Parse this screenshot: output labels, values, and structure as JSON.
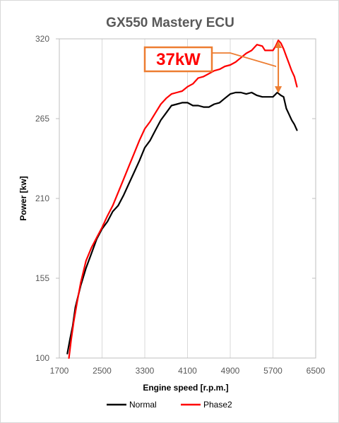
{
  "chart_data": {
    "type": "line",
    "title": "GX550 Mastery ECU",
    "xlabel": "Engine speed [r.p.m.]",
    "ylabel": "Power [kw]",
    "xlim": [
      1700,
      6500
    ],
    "ylim": [
      100,
      320
    ],
    "xticks": [
      "1700",
      "2500",
      "3300",
      "4100",
      "4900",
      "5700",
      "6500"
    ],
    "yticks": [
      "100",
      "155",
      "210",
      "265",
      "320"
    ],
    "grid": "vertical",
    "legend_position": "bottom",
    "annotation": {
      "text": "37kW",
      "x": 5800,
      "y_from": 282,
      "y_to": 319,
      "color": "#ed7d31"
    },
    "series": [
      {
        "name": "Normal",
        "color": "#000000",
        "points": [
          [
            1850,
            103
          ],
          [
            1900,
            113
          ],
          [
            1950,
            122
          ],
          [
            2000,
            135
          ],
          [
            2100,
            150
          ],
          [
            2200,
            162
          ],
          [
            2300,
            172
          ],
          [
            2400,
            182
          ],
          [
            2500,
            189
          ],
          [
            2600,
            194
          ],
          [
            2700,
            201
          ],
          [
            2800,
            205
          ],
          [
            2900,
            212
          ],
          [
            3000,
            220
          ],
          [
            3100,
            228
          ],
          [
            3200,
            236
          ],
          [
            3300,
            245
          ],
          [
            3400,
            250
          ],
          [
            3500,
            257
          ],
          [
            3600,
            264
          ],
          [
            3700,
            269
          ],
          [
            3800,
            274
          ],
          [
            3900,
            275
          ],
          [
            4000,
            276
          ],
          [
            4100,
            276
          ],
          [
            4200,
            274
          ],
          [
            4300,
            274
          ],
          [
            4400,
            273
          ],
          [
            4500,
            273
          ],
          [
            4600,
            275
          ],
          [
            4700,
            276
          ],
          [
            4800,
            279
          ],
          [
            4900,
            282
          ],
          [
            5000,
            283
          ],
          [
            5100,
            283
          ],
          [
            5200,
            282
          ],
          [
            5300,
            283
          ],
          [
            5400,
            281
          ],
          [
            5500,
            280
          ],
          [
            5600,
            280
          ],
          [
            5700,
            280
          ],
          [
            5780,
            283
          ],
          [
            5850,
            281
          ],
          [
            5900,
            280
          ],
          [
            5950,
            272
          ],
          [
            6000,
            268
          ],
          [
            6050,
            264
          ],
          [
            6100,
            261
          ],
          [
            6150,
            257
          ]
        ]
      },
      {
        "name": "Phase2",
        "color": "#ff0000",
        "points": [
          [
            1880,
            100
          ],
          [
            1920,
            112
          ],
          [
            1970,
            125
          ],
          [
            2030,
            138
          ],
          [
            2100,
            152
          ],
          [
            2200,
            167
          ],
          [
            2300,
            176
          ],
          [
            2400,
            183
          ],
          [
            2500,
            190
          ],
          [
            2600,
            198
          ],
          [
            2700,
            205
          ],
          [
            2800,
            214
          ],
          [
            2900,
            223
          ],
          [
            3000,
            232
          ],
          [
            3100,
            241
          ],
          [
            3200,
            250
          ],
          [
            3300,
            258
          ],
          [
            3400,
            263
          ],
          [
            3500,
            269
          ],
          [
            3600,
            275
          ],
          [
            3700,
            279
          ],
          [
            3800,
            282
          ],
          [
            3900,
            283
          ],
          [
            4000,
            284
          ],
          [
            4100,
            287
          ],
          [
            4200,
            289
          ],
          [
            4300,
            293
          ],
          [
            4400,
            294
          ],
          [
            4500,
            296
          ],
          [
            4600,
            298
          ],
          [
            4700,
            299
          ],
          [
            4800,
            301
          ],
          [
            4900,
            302
          ],
          [
            5000,
            304
          ],
          [
            5100,
            307
          ],
          [
            5200,
            310
          ],
          [
            5300,
            312
          ],
          [
            5400,
            316
          ],
          [
            5500,
            315
          ],
          [
            5550,
            312
          ],
          [
            5600,
            312
          ],
          [
            5700,
            312
          ],
          [
            5750,
            315
          ],
          [
            5800,
            319
          ],
          [
            5850,
            317
          ],
          [
            5900,
            313
          ],
          [
            5950,
            308
          ],
          [
            6000,
            303
          ],
          [
            6050,
            298
          ],
          [
            6100,
            294
          ],
          [
            6150,
            287
          ]
        ]
      }
    ]
  }
}
